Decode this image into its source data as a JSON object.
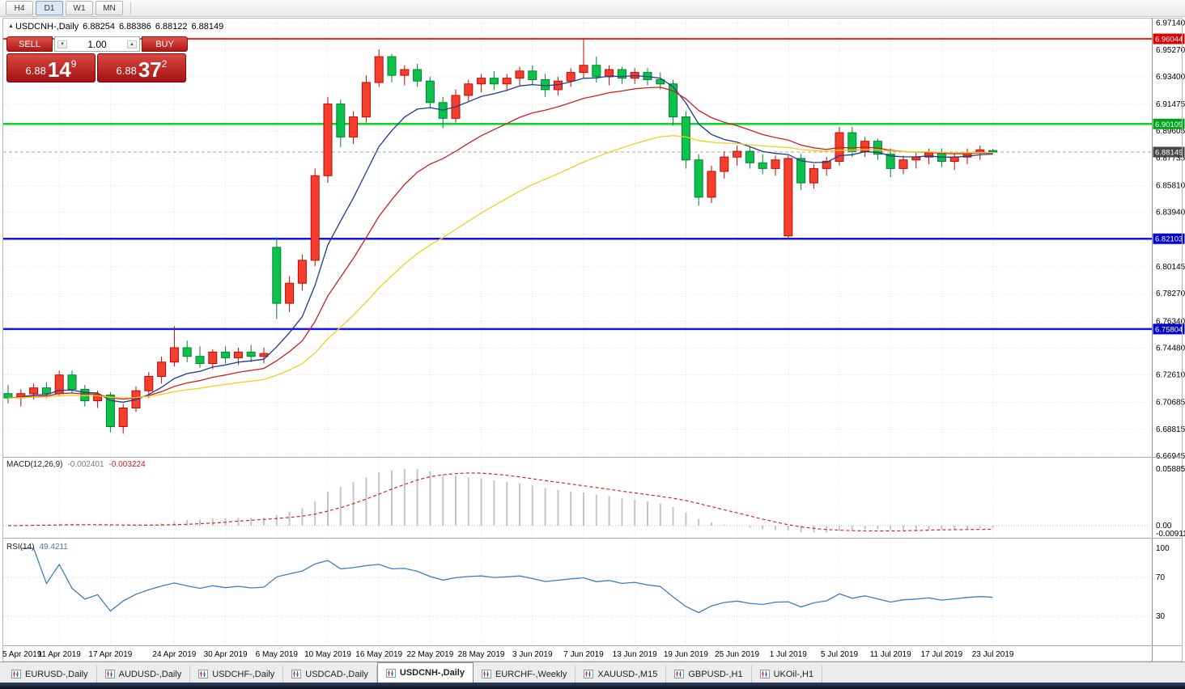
{
  "icons": {
    "expand": "▲",
    "spinner_up": "▲",
    "spinner_down": "▼"
  },
  "toolbar": {
    "timeframes": [
      "H4",
      "D1",
      "W1",
      "MN"
    ],
    "active": "D1"
  },
  "chart_header": {
    "symbol_line": "USDCNH-,Daily",
    "open": "6.88254",
    "high": "6.88386",
    "low": "6.88122",
    "close": "6.88149"
  },
  "trade_panel": {
    "sell_label": "SELL",
    "buy_label": "BUY",
    "volume": "1.00",
    "sell_price": {
      "base": "6.88",
      "pips": "14",
      "pipette": "9"
    },
    "buy_price": {
      "base": "6.88",
      "pips": "37",
      "pipette": "2"
    }
  },
  "chart_data": {
    "type": "candlestick",
    "symbol": "USDCNH-",
    "timeframe": "Daily",
    "ylim": [
      6.66945,
      6.974
    ],
    "colors": {
      "bull": "#f63e2e",
      "bull_border": "#bb0b00",
      "bear": "#0cc24a",
      "bear_border": "#00832e",
      "grid": "#e3e3e3",
      "axis_text": "#000000",
      "separator": "#aaaaaa"
    },
    "price_axis": [
      {
        "t": "6.97140",
        "p": 6.9714
      },
      {
        "t": "6.95270",
        "p": 6.9527
      },
      {
        "t": "6.93400",
        "p": 6.934
      },
      {
        "t": "6.91475",
        "p": 6.91475
      },
      {
        "t": "6.89605",
        "p": 6.89605
      },
      {
        "t": "6.87735",
        "p": 6.87735
      },
      {
        "t": "6.85810",
        "p": 6.8581
      },
      {
        "t": "6.83940",
        "p": 6.8394
      },
      {
        "t": "6.80145",
        "p": 6.80145
      },
      {
        "t": "6.78270",
        "p": 6.7827
      },
      {
        "t": "6.76340",
        "p": 6.7634
      },
      {
        "t": "6.74480",
        "p": 6.7448
      },
      {
        "t": "6.72610",
        "p": 6.7261
      },
      {
        "t": "6.70685",
        "p": 6.70685
      },
      {
        "t": "6.68815",
        "p": 6.68815
      },
      {
        "t": "6.66945",
        "p": 6.66945
      }
    ],
    "levels": [
      {
        "t": "6.96044",
        "p": 6.96044,
        "line": "#ff1f1f",
        "bg": "#dd0000",
        "w": 2
      },
      {
        "t": "6.90109",
        "p": 6.90109,
        "line": "#00d91e",
        "bg": "#00a31c",
        "w": 2.5
      },
      {
        "t": "6.82103",
        "p": 6.82103,
        "line": "#1616e4",
        "bg": "#0000cc",
        "w": 2.5
      },
      {
        "t": "6.75804",
        "p": 6.75804,
        "line": "#1616e4",
        "bg": "#0000cc",
        "w": 2.5
      }
    ],
    "last_price": {
      "t": "6.88149",
      "p": 6.88149,
      "line": "#a6a6a6",
      "bg": "#474747"
    },
    "moving_averages": [
      {
        "name": "fast",
        "period": 8,
        "color": "#1f3a93"
      },
      {
        "name": "medium",
        "period": 16,
        "color": "#cc2020"
      },
      {
        "name": "slow",
        "period": 34,
        "color": "#f2cf1d"
      }
    ],
    "candles": [
      [
        6.713,
        6.719,
        6.706,
        6.71
      ],
      [
        6.71,
        6.716,
        6.704,
        6.713
      ],
      [
        6.713,
        6.72,
        6.709,
        6.717
      ],
      [
        6.717,
        6.721,
        6.71,
        6.713
      ],
      [
        6.713,
        6.729,
        6.711,
        6.726
      ],
      [
        6.726,
        6.729,
        6.713,
        6.716
      ],
      [
        6.716,
        6.719,
        6.704,
        6.708
      ],
      [
        6.708,
        6.715,
        6.703,
        6.712
      ],
      [
        6.712,
        6.714,
        6.686,
        6.69
      ],
      [
        6.69,
        6.706,
        6.685,
        6.703
      ],
      [
        6.703,
        6.718,
        6.7,
        6.715
      ],
      [
        6.715,
        6.728,
        6.71,
        6.725
      ],
      [
        6.725,
        6.739,
        6.72,
        6.735
      ],
      [
        6.735,
        6.76,
        6.732,
        6.745
      ],
      [
        6.745,
        6.75,
        6.735,
        6.739
      ],
      [
        6.739,
        6.746,
        6.731,
        6.734
      ],
      [
        6.734,
        6.744,
        6.73,
        6.742
      ],
      [
        6.742,
        6.746,
        6.734,
        6.738
      ],
      [
        6.738,
        6.745,
        6.733,
        6.742
      ],
      [
        6.742,
        6.747,
        6.735,
        6.739
      ],
      [
        6.739,
        6.745,
        6.734,
        6.741
      ],
      [
        6.815,
        6.822,
        6.765,
        6.776
      ],
      [
        6.776,
        6.795,
        6.77,
        6.79
      ],
      [
        6.79,
        6.81,
        6.785,
        6.806
      ],
      [
        6.806,
        6.87,
        6.802,
        6.865
      ],
      [
        6.865,
        6.92,
        6.86,
        6.915
      ],
      [
        6.915,
        6.918,
        6.885,
        6.892
      ],
      [
        6.892,
        6.91,
        6.887,
        6.906
      ],
      [
        6.906,
        6.935,
        6.902,
        6.93
      ],
      [
        6.93,
        6.953,
        6.927,
        6.948
      ],
      [
        6.948,
        6.95,
        6.93,
        6.935
      ],
      [
        6.935,
        6.942,
        6.928,
        6.939
      ],
      [
        6.939,
        6.943,
        6.927,
        6.931
      ],
      [
        6.931,
        6.934,
        6.912,
        6.916
      ],
      [
        6.916,
        6.92,
        6.898,
        6.905
      ],
      [
        6.905,
        6.925,
        6.902,
        6.921
      ],
      [
        6.921,
        6.932,
        6.917,
        6.929
      ],
      [
        6.929,
        6.936,
        6.923,
        6.933
      ],
      [
        6.933,
        6.938,
        6.925,
        6.929
      ],
      [
        6.929,
        6.936,
        6.924,
        6.933
      ],
      [
        6.933,
        6.941,
        6.928,
        6.938
      ],
      [
        6.938,
        6.942,
        6.928,
        6.932
      ],
      [
        6.932,
        6.936,
        6.92,
        6.925
      ],
      [
        6.925,
        6.934,
        6.921,
        6.931
      ],
      [
        6.931,
        6.94,
        6.927,
        6.937
      ],
      [
        6.937,
        6.9604,
        6.933,
        6.942
      ],
      [
        6.942,
        6.948,
        6.93,
        6.934
      ],
      [
        6.934,
        6.942,
        6.928,
        6.939
      ],
      [
        6.939,
        6.941,
        6.929,
        6.933
      ],
      [
        6.933,
        6.94,
        6.929,
        6.937
      ],
      [
        6.937,
        6.94,
        6.928,
        6.932
      ],
      [
        6.932,
        6.937,
        6.925,
        6.929
      ],
      [
        6.929,
        6.932,
        6.9,
        6.906
      ],
      [
        6.906,
        6.91,
        6.87,
        6.876
      ],
      [
        6.876,
        6.88,
        6.844,
        6.85
      ],
      [
        6.85,
        6.872,
        6.846,
        6.868
      ],
      [
        6.868,
        6.882,
        6.863,
        6.878
      ],
      [
        6.878,
        6.886,
        6.872,
        6.882
      ],
      [
        6.882,
        6.885,
        6.87,
        6.874
      ],
      [
        6.874,
        6.88,
        6.866,
        6.87
      ],
      [
        6.87,
        6.879,
        6.865,
        6.876
      ],
      [
        6.823,
        6.879,
        6.821,
        6.877
      ],
      [
        6.877,
        6.88,
        6.855,
        6.86
      ],
      [
        6.86,
        6.873,
        6.856,
        6.87
      ],
      [
        6.87,
        6.878,
        6.865,
        6.875
      ],
      [
        6.875,
        6.899,
        6.872,
        6.895
      ],
      [
        6.895,
        6.899,
        6.878,
        6.882
      ],
      [
        6.882,
        6.892,
        6.878,
        6.889
      ],
      [
        6.889,
        6.891,
        6.876,
        6.88
      ],
      [
        6.88,
        6.884,
        6.864,
        6.87
      ],
      [
        6.87,
        6.879,
        6.866,
        6.876
      ],
      [
        6.876,
        6.881,
        6.87,
        6.878
      ],
      [
        6.878,
        6.884,
        6.873,
        6.881
      ],
      [
        6.881,
        6.884,
        6.871,
        6.875
      ],
      [
        6.875,
        6.881,
        6.869,
        6.878
      ],
      [
        6.878,
        6.884,
        6.873,
        6.881
      ],
      [
        6.881,
        6.886,
        6.876,
        6.883
      ],
      [
        6.88254,
        6.88386,
        6.88122,
        6.88149
      ]
    ],
    "x_ticks": [
      {
        "label": "5 Apr 2019",
        "i": 0
      },
      {
        "label": "11 Apr 2019",
        "i": 4
      },
      {
        "label": "17 Apr 2019",
        "i": 8
      },
      {
        "label": "24 Apr 2019",
        "i": 13
      },
      {
        "label": "30 Apr 2019",
        "i": 17
      },
      {
        "label": "6 May 2019",
        "i": 21
      },
      {
        "label": "10 May 2019",
        "i": 25
      },
      {
        "label": "16 May 2019",
        "i": 29
      },
      {
        "label": "22 May 2019",
        "i": 33
      },
      {
        "label": "28 May 2019",
        "i": 37
      },
      {
        "label": "3 Jun 2019",
        "i": 41
      },
      {
        "label": "7 Jun 2019",
        "i": 45
      },
      {
        "label": "13 Jun 2019",
        "i": 49
      },
      {
        "label": "19 Jun 2019",
        "i": 53
      },
      {
        "label": "25 Jun 2019",
        "i": 57
      },
      {
        "label": "1 Jul 2019",
        "i": 61
      },
      {
        "label": "5 Jul 2019",
        "i": 65
      },
      {
        "label": "11 Jul 2019",
        "i": 69
      },
      {
        "label": "17 Jul 2019",
        "i": 73
      },
      {
        "label": "23 Jul 2019",
        "i": 77
      }
    ],
    "macd": {
      "label": "MACD(12,26,9)",
      "value": "-0.002401",
      "signal_value": "-0.003224",
      "fast": 12,
      "slow": 26,
      "signal": 9,
      "axis_labels": [
        "0.058851",
        "0.00",
        "-0.009116"
      ],
      "histogram_color": "#c4c4c4",
      "signal_color": "#e02020"
    },
    "rsi": {
      "label": "RSI(14)",
      "value": "49.4211",
      "period": 14,
      "axis_labels": [
        "100",
        "70",
        "30"
      ],
      "levels": [
        70,
        30
      ],
      "line_color": "#3f7cc0"
    }
  },
  "tabs": {
    "active": "USDCNH-,Daily",
    "items": [
      {
        "label": "EURUSD-,Daily"
      },
      {
        "label": "AUDUSD-,Daily"
      },
      {
        "label": "USDCHF-,Daily"
      },
      {
        "label": "USDCAD-,Daily"
      },
      {
        "label": "USDCNH-,Daily"
      },
      {
        "label": "EURCHF-,Weekly"
      },
      {
        "label": "XAUUSD-,M15"
      },
      {
        "label": "GBPUSD-,H1"
      },
      {
        "label": "UKOil-,H1"
      }
    ]
  }
}
